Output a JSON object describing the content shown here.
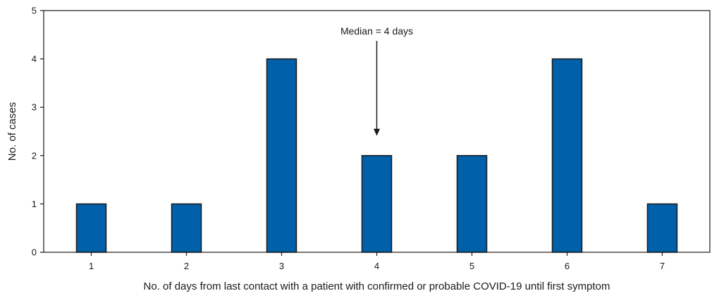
{
  "chart_data": {
    "type": "bar",
    "categories": [
      "1",
      "2",
      "3",
      "4",
      "5",
      "6",
      "7"
    ],
    "values": [
      1,
      1,
      4,
      2,
      2,
      4,
      1
    ],
    "title": "",
    "xlabel": "No. of days from last contact with a patient with confirmed or probable COVID-19 until first symptom",
    "ylabel": "No. of cases",
    "ylim": [
      0,
      5
    ],
    "yticks": [
      0,
      1,
      2,
      3,
      4,
      5
    ],
    "grid": false,
    "bar_color": "#0060aa",
    "bar_edge_color": "#1a1a1a",
    "annotation": {
      "text": "Median = 4 days",
      "category": "4"
    }
  }
}
